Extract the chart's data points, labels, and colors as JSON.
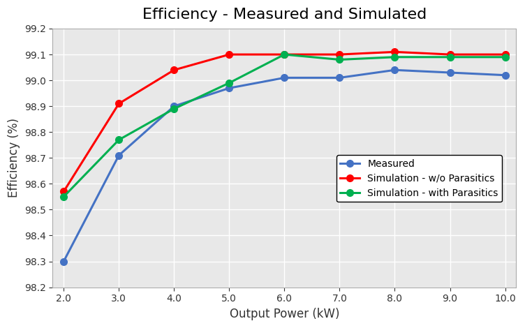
{
  "title": "Efficiency - Measured and Simulated",
  "xlabel": "Output Power (kW)",
  "ylabel": "Efficiency (%)",
  "x": [
    2.0,
    3.0,
    4.0,
    5.0,
    6.0,
    7.0,
    8.0,
    9.0,
    10.0
  ],
  "measured": [
    98.3,
    98.71,
    98.9,
    98.97,
    99.01,
    99.01,
    99.04,
    99.03,
    99.02
  ],
  "sim_no_parasitics": [
    98.57,
    98.91,
    99.04,
    99.1,
    99.1,
    99.1,
    99.11,
    99.1,
    99.1
  ],
  "sim_with_parasitics": [
    98.55,
    98.77,
    98.89,
    98.99,
    99.1,
    99.08,
    99.09,
    99.09,
    99.09
  ],
  "measured_color": "#4472C4",
  "sim_no_parasitics_color": "#FF0000",
  "sim_with_parasitics_color": "#00B050",
  "figure_bg_color": "#FFFFFF",
  "plot_bg_color": "#E8E8E8",
  "ylim": [
    98.2,
    99.2
  ],
  "xlim": [
    1.8,
    10.2
  ],
  "yticks": [
    98.2,
    98.3,
    98.4,
    98.5,
    98.6,
    98.7,
    98.8,
    98.9,
    99.0,
    99.1,
    99.2
  ],
  "xticks": [
    2.0,
    3.0,
    4.0,
    5.0,
    6.0,
    7.0,
    8.0,
    9.0,
    10.0
  ],
  "legend_labels": [
    "Measured",
    "Simulation - w/o Parasitics",
    "Simulation - with Parasitics"
  ],
  "line_width": 2.2,
  "marker": "o",
  "marker_size": 7,
  "title_fontsize": 16,
  "axis_label_fontsize": 12,
  "tick_fontsize": 10,
  "legend_fontsize": 10,
  "grid_color": "#FFFFFF",
  "grid_linewidth": 1.0
}
